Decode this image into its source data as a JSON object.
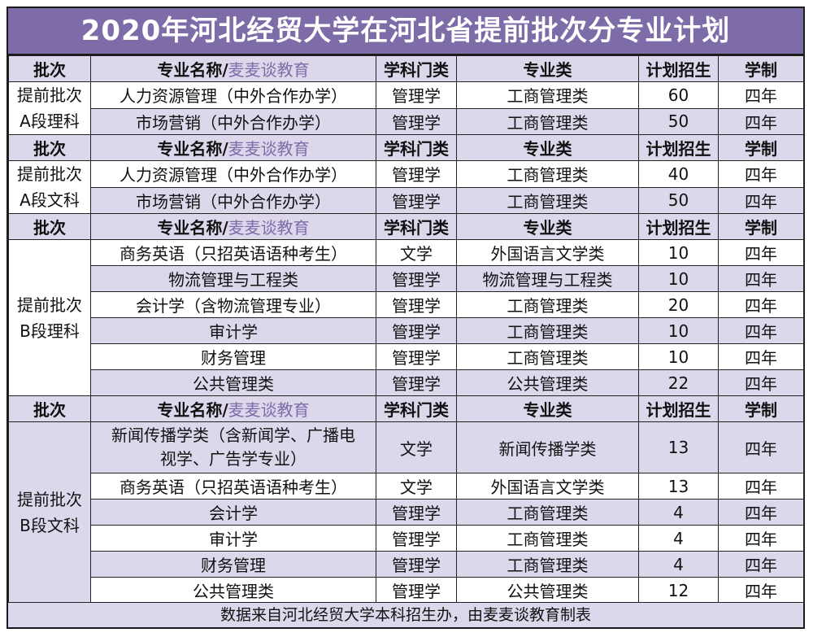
{
  "title": "2020年河北经贸大学在河北省提前批次分专业计划",
  "header": {
    "batch": "批次",
    "major_prefix": "专业名称/",
    "major_brand": "麦麦谈教育",
    "discipline": "学科门类",
    "category": "专业类",
    "quota": "计划招生",
    "duration": "学制"
  },
  "groups": [
    {
      "batch_line1": "提前批次",
      "batch_line2": "A段理科",
      "rows": [
        {
          "major": "人力资源管理（中外合作办学）",
          "discipline": "管理学",
          "category": "工商管理类",
          "quota": "60",
          "duration": "四年"
        },
        {
          "major": "市场营销（中外合作办学）",
          "discipline": "管理学",
          "category": "工商管理类",
          "quota": "50",
          "duration": "四年"
        }
      ]
    },
    {
      "batch_line1": "提前批次",
      "batch_line2": "A段文科",
      "rows": [
        {
          "major": "人力资源管理（中外合作办学）",
          "discipline": "管理学",
          "category": "工商管理类",
          "quota": "40",
          "duration": "四年"
        },
        {
          "major": "市场营销（中外合作办学）",
          "discipline": "管理学",
          "category": "工商管理类",
          "quota": "50",
          "duration": "四年"
        }
      ]
    },
    {
      "batch_line1": "提前批次",
      "batch_line2": "B段理科",
      "rows": [
        {
          "major": "商务英语（只招英语语种考生）",
          "discipline": "文学",
          "category": "外国语言文学类",
          "quota": "10",
          "duration": "四年"
        },
        {
          "major": "物流管理与工程类",
          "discipline": "管理学",
          "category": "物流管理与工程类",
          "quota": "10",
          "duration": "四年"
        },
        {
          "major": "会计学（含物流管理专业）",
          "discipline": "管理学",
          "category": "工商管理类",
          "quota": "20",
          "duration": "四年"
        },
        {
          "major": "审计学",
          "discipline": "管理学",
          "category": "工商管理类",
          "quota": "10",
          "duration": "四年"
        },
        {
          "major": "财务管理",
          "discipline": "管理学",
          "category": "工商管理类",
          "quota": "10",
          "duration": "四年"
        },
        {
          "major": "公共管理类",
          "discipline": "管理学",
          "category": "公共管理类",
          "quota": "22",
          "duration": "四年"
        }
      ]
    },
    {
      "batch_line1": "提前批次",
      "batch_line2": "B段文科",
      "rows": [
        {
          "major_line1": "新闻传播学类（含新闻学、广播电",
          "major_line2": "视学、广告学专业）",
          "discipline": "文学",
          "category": "新闻传播学类",
          "quota": "13",
          "duration": "四年"
        },
        {
          "major": "商务英语（只招英语语种考生）",
          "discipline": "文学",
          "category": "外国语言文学类",
          "quota": "13",
          "duration": "四年"
        },
        {
          "major": "会计学",
          "discipline": "管理学",
          "category": "工商管理类",
          "quota": "4",
          "duration": "四年"
        },
        {
          "major": "审计学",
          "discipline": "管理学",
          "category": "工商管理类",
          "quota": "4",
          "duration": "四年"
        },
        {
          "major": "财务管理",
          "discipline": "管理学",
          "category": "工商管理类",
          "quota": "4",
          "duration": "四年"
        },
        {
          "major": "公共管理类",
          "discipline": "管理学",
          "category": "公共管理类",
          "quota": "12",
          "duration": "四年"
        }
      ]
    }
  ],
  "footer": "数据来自河北经贸大学本科招生办，由麦麦谈教育制表",
  "colors": {
    "title_bg": "#7e6ca8",
    "row_tint": "#ddd7ec",
    "brand_text": "#7e6ca8"
  }
}
